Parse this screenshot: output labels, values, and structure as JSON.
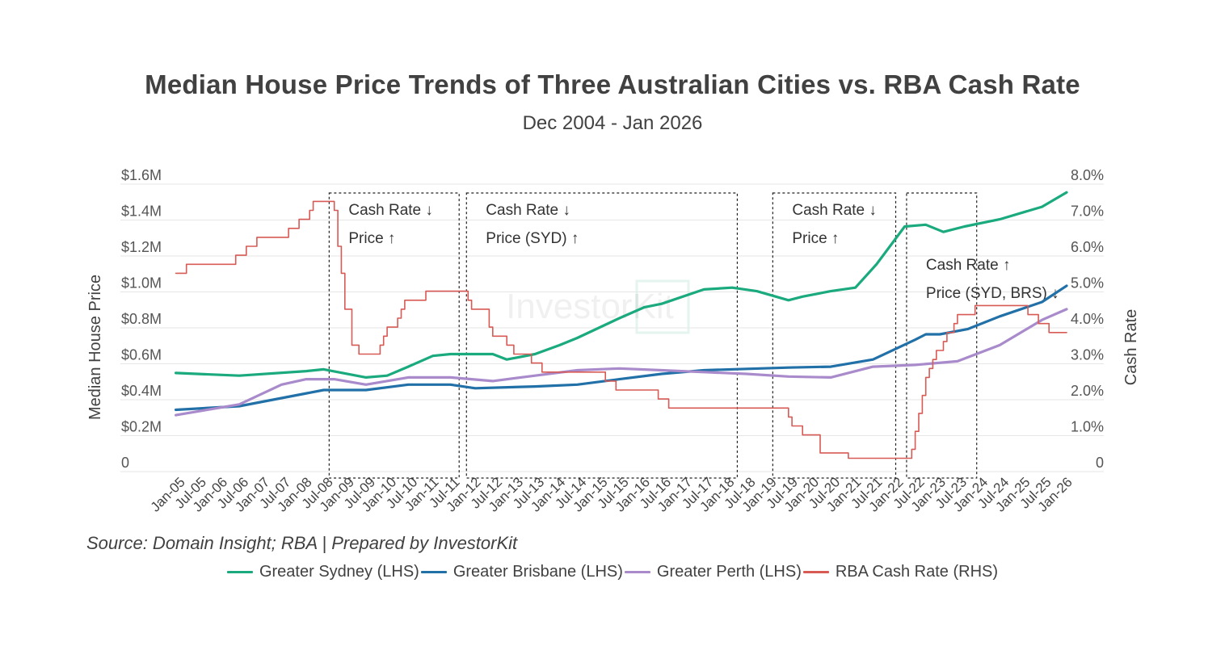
{
  "title": "Median House Price Trends of Three Australian Cities vs. RBA Cash Rate",
  "subtitle": "Dec 2004 - Jan 2026",
  "source": "Source: Domain Insight; RBA | Prepared by InvestorKit",
  "watermark": "InvestorKit",
  "colors": {
    "sydney": "#1aaa7e",
    "brisbane": "#2270a8",
    "perth": "#a98bcc",
    "cash": "#d75a55"
  },
  "chart_data": {
    "type": "line",
    "title": "Median House Price Trends of Three Australian Cities vs. RBA Cash Rate",
    "subtitle": "Dec 2004 - Jan 2026",
    "ylabel": "Median House Price",
    "y2label": "Cash Rate",
    "ylim": [
      0,
      1600000
    ],
    "y2lim": [
      0,
      8
    ],
    "yticks": [
      "0",
      "$0.2M",
      "$0.4M",
      "$0.6M",
      "$0.8M",
      "$1.0M",
      "$1.2M",
      "$1.4M",
      "$1.6M"
    ],
    "y2ticks": [
      "0",
      "1.0%",
      "2.0%",
      "3.0%",
      "4.0%",
      "5.0%",
      "6.0%",
      "7.0%",
      "8.0%"
    ],
    "xlim": [
      "2004-12",
      "2026-01"
    ],
    "xticks": [
      "Jan-05",
      "Jul-05",
      "Jan-06",
      "Jul-06",
      "Jan-07",
      "Jul-07",
      "Jan-08",
      "Jul-08",
      "Jan-09",
      "Jul-09",
      "Jan-10",
      "Jul-10",
      "Jan-11",
      "Jul-11",
      "Jan-12",
      "Jul-12",
      "Jan-13",
      "Jul-13",
      "Jan-14",
      "Jul-14",
      "Jan-15",
      "Jul-15",
      "Jan-16",
      "Jul-16",
      "Jan-17",
      "Jul-17",
      "Jan-18",
      "Jul-18",
      "Jan-19",
      "Jul-19",
      "Jan-20",
      "Jul-20",
      "Jan-21",
      "Jul-21",
      "Jan-22",
      "Jul-22",
      "Jan-23",
      "Jul-23",
      "Jan-24",
      "Jul-24",
      "Jan-25",
      "Jul-25",
      "Jan-26"
    ],
    "grid": true,
    "legend_position": "bottom",
    "series": [
      {
        "name": "Greater Sydney (LHS)",
        "axis": "left",
        "color": "#1aaa7e",
        "points": [
          [
            "2004-12",
            495000
          ],
          [
            "2006-06",
            480000
          ],
          [
            "2008-01",
            505000
          ],
          [
            "2008-06",
            515000
          ],
          [
            "2009-06",
            470000
          ],
          [
            "2009-12",
            480000
          ],
          [
            "2010-06",
            530000
          ],
          [
            "2011-01",
            590000
          ],
          [
            "2011-06",
            600000
          ],
          [
            "2012-06",
            600000
          ],
          [
            "2012-10",
            570000
          ],
          [
            "2013-06",
            600000
          ],
          [
            "2014-01",
            650000
          ],
          [
            "2014-06",
            690000
          ],
          [
            "2015-06",
            800000
          ],
          [
            "2016-01",
            860000
          ],
          [
            "2016-06",
            880000
          ],
          [
            "2017-06",
            960000
          ],
          [
            "2018-02",
            970000
          ],
          [
            "2018-09",
            950000
          ],
          [
            "2019-06",
            900000
          ],
          [
            "2019-10",
            920000
          ],
          [
            "2020-06",
            950000
          ],
          [
            "2021-01",
            970000
          ],
          [
            "2021-07",
            1100000
          ],
          [
            "2022-03",
            1310000
          ],
          [
            "2022-09",
            1320000
          ],
          [
            "2023-02",
            1280000
          ],
          [
            "2023-08",
            1310000
          ],
          [
            "2024-06",
            1350000
          ],
          [
            "2025-06",
            1420000
          ],
          [
            "2026-01",
            1500000
          ]
        ]
      },
      {
        "name": "Greater Brisbane (LHS)",
        "axis": "left",
        "color": "#2270a8",
        "points": [
          [
            "2004-12",
            290000
          ],
          [
            "2006-06",
            310000
          ],
          [
            "2008-06",
            400000
          ],
          [
            "2009-06",
            400000
          ],
          [
            "2010-06",
            430000
          ],
          [
            "2011-06",
            430000
          ],
          [
            "2012-01",
            410000
          ],
          [
            "2013-06",
            420000
          ],
          [
            "2014-06",
            430000
          ],
          [
            "2015-06",
            460000
          ],
          [
            "2016-06",
            490000
          ],
          [
            "2017-06",
            510000
          ],
          [
            "2019-06",
            525000
          ],
          [
            "2020-06",
            530000
          ],
          [
            "2021-06",
            570000
          ],
          [
            "2022-06",
            680000
          ],
          [
            "2022-09",
            710000
          ],
          [
            "2023-01",
            710000
          ],
          [
            "2023-09",
            740000
          ],
          [
            "2024-06",
            810000
          ],
          [
            "2025-06",
            890000
          ],
          [
            "2026-01",
            980000
          ]
        ]
      },
      {
        "name": "Greater Perth (LHS)",
        "axis": "left",
        "color": "#a98bcc",
        "points": [
          [
            "2004-12",
            260000
          ],
          [
            "2006-06",
            320000
          ],
          [
            "2007-06",
            430000
          ],
          [
            "2008-01",
            460000
          ],
          [
            "2008-09",
            460000
          ],
          [
            "2009-06",
            430000
          ],
          [
            "2010-06",
            470000
          ],
          [
            "2011-06",
            470000
          ],
          [
            "2012-06",
            450000
          ],
          [
            "2013-06",
            480000
          ],
          [
            "2014-06",
            510000
          ],
          [
            "2015-06",
            520000
          ],
          [
            "2016-06",
            510000
          ],
          [
            "2017-06",
            500000
          ],
          [
            "2018-06",
            490000
          ],
          [
            "2019-06",
            475000
          ],
          [
            "2020-06",
            470000
          ],
          [
            "2021-06",
            530000
          ],
          [
            "2022-06",
            540000
          ],
          [
            "2023-06",
            560000
          ],
          [
            "2024-06",
            650000
          ],
          [
            "2025-06",
            790000
          ],
          [
            "2026-01",
            850000
          ]
        ]
      },
      {
        "name": "RBA Cash Rate (RHS)",
        "axis": "right",
        "color": "#d75a55",
        "points": [
          [
            "2004-12",
            5.25
          ],
          [
            "2005-03",
            5.5
          ],
          [
            "2006-05",
            5.75
          ],
          [
            "2006-08",
            6.0
          ],
          [
            "2006-11",
            6.25
          ],
          [
            "2007-08",
            6.5
          ],
          [
            "2007-11",
            6.75
          ],
          [
            "2008-02",
            7.0
          ],
          [
            "2008-03",
            7.25
          ],
          [
            "2008-09",
            7.0
          ],
          [
            "2008-10",
            6.0
          ],
          [
            "2008-11",
            5.25
          ],
          [
            "2008-12",
            4.25
          ],
          [
            "2009-02",
            3.25
          ],
          [
            "2009-04",
            3.0
          ],
          [
            "2009-10",
            3.25
          ],
          [
            "2009-11",
            3.5
          ],
          [
            "2009-12",
            3.75
          ],
          [
            "2010-03",
            4.0
          ],
          [
            "2010-04",
            4.25
          ],
          [
            "2010-05",
            4.5
          ],
          [
            "2010-11",
            4.75
          ],
          [
            "2011-11",
            4.5
          ],
          [
            "2011-12",
            4.25
          ],
          [
            "2012-05",
            3.75
          ],
          [
            "2012-06",
            3.5
          ],
          [
            "2012-10",
            3.25
          ],
          [
            "2012-12",
            3.0
          ],
          [
            "2013-05",
            2.75
          ],
          [
            "2013-08",
            2.5
          ],
          [
            "2015-02",
            2.25
          ],
          [
            "2015-05",
            2.0
          ],
          [
            "2016-05",
            1.75
          ],
          [
            "2016-08",
            1.5
          ],
          [
            "2019-06",
            1.25
          ],
          [
            "2019-07",
            1.0
          ],
          [
            "2019-10",
            0.75
          ],
          [
            "2020-03",
            0.25
          ],
          [
            "2020-11",
            0.1
          ],
          [
            "2022-05",
            0.35
          ],
          [
            "2022-06",
            0.85
          ],
          [
            "2022-07",
            1.35
          ],
          [
            "2022-08",
            1.85
          ],
          [
            "2022-09",
            2.35
          ],
          [
            "2022-10",
            2.6
          ],
          [
            "2022-11",
            2.85
          ],
          [
            "2022-12",
            3.1
          ],
          [
            "2023-02",
            3.35
          ],
          [
            "2023-03",
            3.6
          ],
          [
            "2023-05",
            3.85
          ],
          [
            "2023-06",
            4.1
          ],
          [
            "2023-11",
            4.35
          ],
          [
            "2025-02",
            4.1
          ],
          [
            "2025-05",
            3.85
          ],
          [
            "2025-08",
            3.6
          ],
          [
            "2026-01",
            3.6
          ]
        ]
      }
    ],
    "annotations": [
      {
        "start": "2008-08",
        "end": "2011-08",
        "line1": "Cash Rate",
        "arrow1": "↓",
        "line2": "Price",
        "arrow2": "↑"
      },
      {
        "start": "2011-11",
        "end": "2018-03",
        "line1": "Cash Rate",
        "arrow1": "↓",
        "line2": "Price (SYD)",
        "arrow2": "↑"
      },
      {
        "start": "2019-02",
        "end": "2021-12",
        "line1": "Cash Rate",
        "arrow1": "↓",
        "line2": "Price",
        "arrow2": "↑"
      },
      {
        "start": "2022-04",
        "end": "2023-11",
        "line1": "Cash Rate",
        "arrow1": "↑",
        "line2": "Price (SYD, BRS)",
        "arrow2": "↓"
      }
    ]
  }
}
